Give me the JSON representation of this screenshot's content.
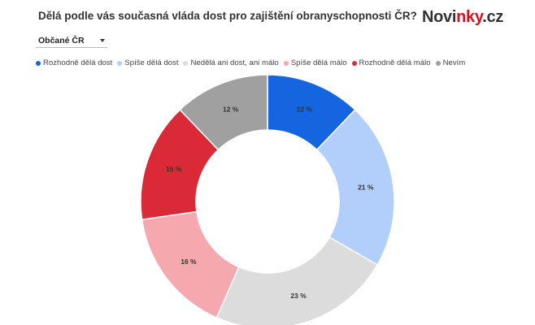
{
  "header": {
    "title": "Dělá podle vás současná vláda dost pro zajištění obranyschopnosti ČR?",
    "logo_part1": "Novi",
    "logo_part2": "nky",
    "logo_part3": ".cz"
  },
  "filter": {
    "selected": "Občané ČR"
  },
  "colors": {
    "brand_accent": "#d6121f"
  },
  "chart_data": {
    "type": "pie",
    "donut": true,
    "legend_position": "top",
    "categories": [
      "Rozhodně dělá dost",
      "Spíše dělá dost",
      "Nedělá ani dost, ani málo",
      "Spíše dělá málo",
      "Rozhodně dělá málo",
      "Nevím"
    ],
    "values": [
      12,
      21,
      23,
      16,
      15,
      12
    ],
    "labels": [
      "12 %",
      "21 %",
      "23 %",
      "16 %",
      "15 %",
      "12 %"
    ],
    "colors": [
      "#1565e0",
      "#b1cffa",
      "#dcdcdc",
      "#f5a8ad",
      "#db2a37",
      "#a0a0a0"
    ]
  }
}
